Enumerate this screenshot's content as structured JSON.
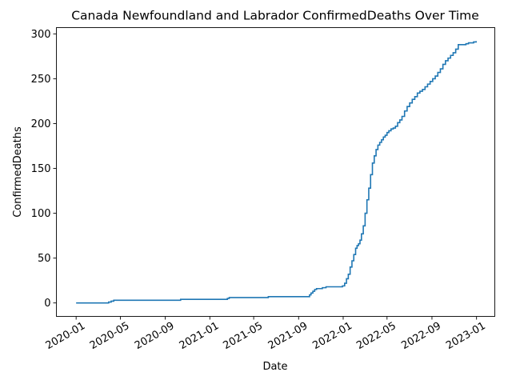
{
  "chart_data": {
    "type": "line",
    "title": "Canada Newfoundland and Labrador ConfirmedDeaths Over Time",
    "xlabel": "Date",
    "ylabel": "ConfirmedDeaths",
    "x_ticks": [
      "2020-01",
      "2020-05",
      "2020-09",
      "2021-01",
      "2021-05",
      "2021-09",
      "2022-01",
      "2022-05",
      "2022-09",
      "2023-01"
    ],
    "y_ticks": [
      "0",
      "50",
      "100",
      "150",
      "200",
      "250",
      "300"
    ],
    "xlim": [
      "2019-11-08",
      "2023-02-20"
    ],
    "ylim": [
      -15,
      307
    ],
    "grid": false,
    "legend": "none",
    "line_color": "#1f77b4",
    "series": [
      {
        "step": "post",
        "x": [
          "2020-01-01",
          "2020-03-30",
          "2020-04-06",
          "2020-04-13",
          "2020-10-13",
          "2021-02-18",
          "2021-02-23",
          "2021-06-10",
          "2021-10-01",
          "2021-10-05",
          "2021-10-10",
          "2021-10-15",
          "2021-10-20",
          "2021-10-27",
          "2021-11-05",
          "2021-11-15",
          "2021-11-25",
          "2021-12-30",
          "2022-01-05",
          "2022-01-10",
          "2022-01-15",
          "2022-01-20",
          "2022-01-25",
          "2022-01-30",
          "2022-02-04",
          "2022-02-08",
          "2022-02-12",
          "2022-02-16",
          "2022-02-20",
          "2022-02-25",
          "2022-03-02",
          "2022-03-07",
          "2022-03-12",
          "2022-03-17",
          "2022-03-22",
          "2022-03-27",
          "2022-04-01",
          "2022-04-06",
          "2022-04-11",
          "2022-04-16",
          "2022-04-21",
          "2022-04-26",
          "2022-05-01",
          "2022-05-06",
          "2022-05-12",
          "2022-05-18",
          "2022-05-24",
          "2022-05-30",
          "2022-06-05",
          "2022-06-11",
          "2022-06-18",
          "2022-06-25",
          "2022-07-02",
          "2022-07-09",
          "2022-07-16",
          "2022-07-23",
          "2022-07-30",
          "2022-08-06",
          "2022-08-13",
          "2022-08-20",
          "2022-08-27",
          "2022-09-03",
          "2022-09-10",
          "2022-09-17",
          "2022-09-24",
          "2022-10-01",
          "2022-10-08",
          "2022-10-15",
          "2022-10-22",
          "2022-10-29",
          "2022-11-05",
          "2022-11-12",
          "2022-11-19",
          "2022-11-26",
          "2022-12-03",
          "2022-12-10",
          "2022-12-17",
          "2022-12-24",
          "2022-12-31"
        ],
        "y": [
          0,
          1,
          2,
          3,
          4,
          5,
          6,
          7,
          9,
          11,
          13,
          15,
          16,
          16,
          17,
          18,
          18,
          19,
          22,
          27,
          32,
          40,
          47,
          54,
          61,
          64,
          66,
          70,
          77,
          86,
          100,
          115,
          128,
          143,
          156,
          164,
          171,
          176,
          179,
          182,
          185,
          187,
          190,
          192,
          194,
          195,
          197,
          201,
          204,
          208,
          214,
          219,
          223,
          227,
          230,
          234,
          236,
          238,
          241,
          244,
          247,
          250,
          253,
          257,
          261,
          266,
          270,
          273,
          276,
          279,
          283,
          288,
          288,
          288,
          289,
          290,
          290,
          291,
          292
        ]
      }
    ]
  }
}
